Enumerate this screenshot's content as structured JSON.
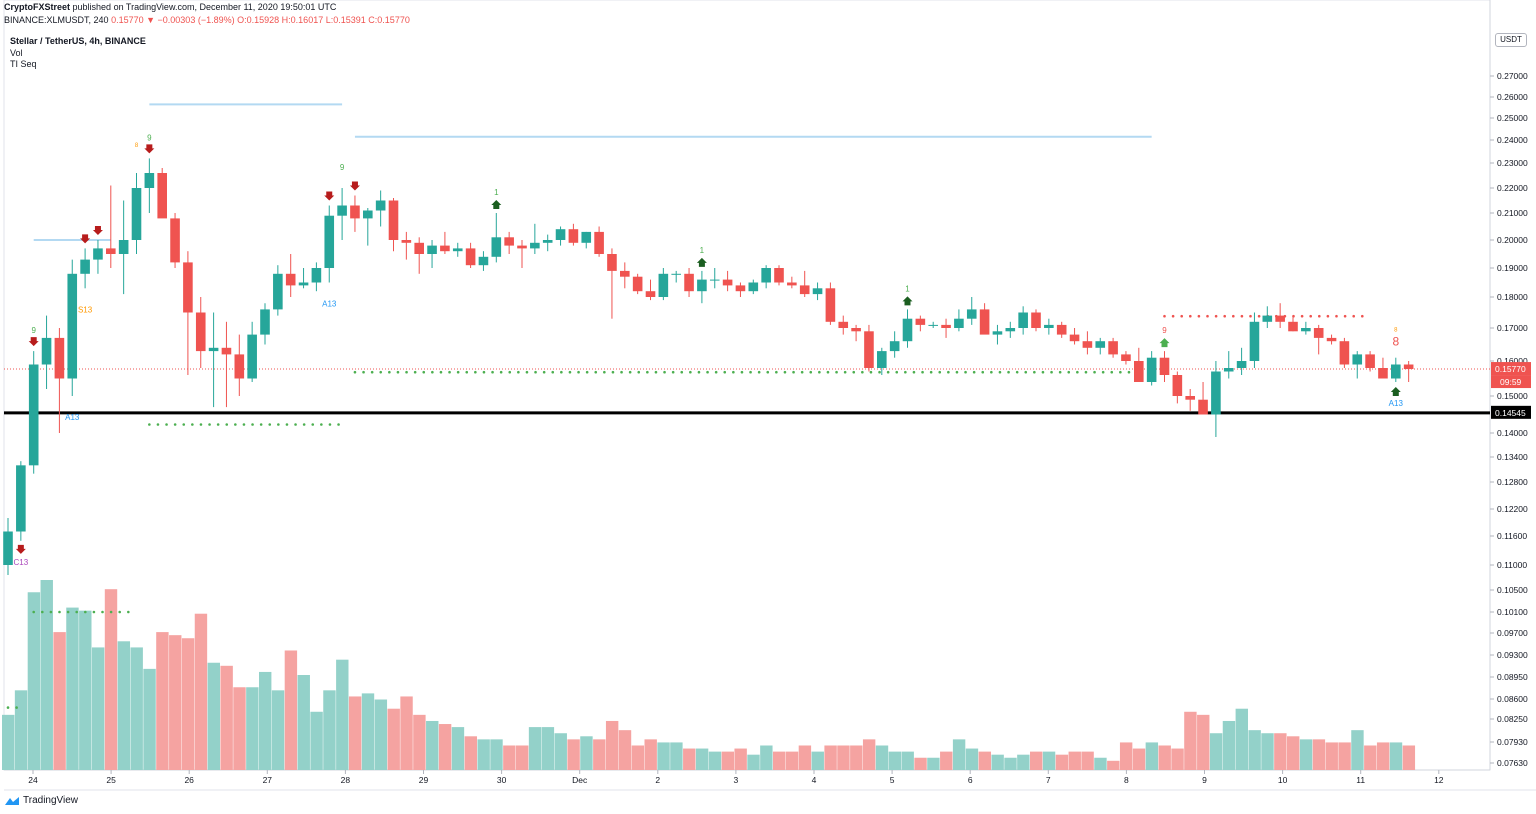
{
  "header": {
    "publisher": "CryptoFXStreet",
    "published_text": "published on TradingView.com, December 11, 2020 19:50:01 UTC",
    "symbol_line": "BINANCE:XLMUSDT, 240",
    "last": "0.15770",
    "change": "▼ −0.00303 (−1.89%)",
    "o": "O:0.15928",
    "h": "H:0.16017",
    "l": "L:0.15391",
    "c": "C:0.15770"
  },
  "legend": {
    "title": "Stellar / TetherUS, 4h, BINANCE",
    "vol": "Vol",
    "indicator": "TI Seq"
  },
  "unit_label": "USDT",
  "footer": {
    "brand": "TradingView"
  },
  "colors": {
    "up": "#26a69a",
    "down": "#ef5350",
    "up_vol": "#93d1c9",
    "down_vol": "#f5a3a1",
    "level": "#000000",
    "resistance": "#b3d9f2",
    "dots_green": "#4caf50",
    "dots_red": "#ef5350",
    "tdseq_green": "#4caf50",
    "tdseq_red": "#ef5350",
    "tdseq_orange": "#ff9800",
    "tdseq_blue": "#2196f3",
    "tdseq_purple": "#ab47bc",
    "arrow_red": "#b71c1c",
    "arrow_green": "#1b5e20"
  },
  "chart_data": {
    "type": "candlestick",
    "ylim": [
      0.0736,
      0.2848
    ],
    "y_ticks": [
      "0.27000",
      "0.26000",
      "0.25000",
      "0.24000",
      "0.23000",
      "0.22000",
      "0.21000",
      "0.20000",
      "0.19000",
      "0.18000",
      "0.17000",
      "0.16000",
      "0.15000",
      "0.14000",
      "0.13400",
      "0.12800",
      "0.12200",
      "0.11600",
      "0.11000",
      "0.10500",
      "0.10100",
      "0.09700",
      "0.09300",
      "0.08950",
      "0.08600",
      "0.08250",
      "0.07930",
      "0.07630"
    ],
    "x_ticks": [
      "24",
      "25",
      "26",
      "27",
      "28",
      "29",
      "30",
      "Dec",
      "2",
      "3",
      "4",
      "5",
      "6",
      "7",
      "8",
      "9",
      "10",
      "11",
      "12"
    ],
    "last_price_label": "0.15770",
    "countdown_label": "09:59",
    "support_level": 0.14545,
    "support_label": "0.14545",
    "candles": [
      {
        "o": 0.11,
        "h": 0.12,
        "l": 0.108,
        "c": 0.117
      },
      {
        "o": 0.117,
        "h": 0.133,
        "l": 0.115,
        "c": 0.132
      },
      {
        "o": 0.132,
        "h": 0.163,
        "l": 0.13,
        "c": 0.159
      },
      {
        "o": 0.159,
        "h": 0.174,
        "l": 0.152,
        "c": 0.167
      },
      {
        "o": 0.167,
        "h": 0.17,
        "l": 0.14,
        "c": 0.155
      },
      {
        "o": 0.155,
        "h": 0.193,
        "l": 0.15,
        "c": 0.188
      },
      {
        "o": 0.188,
        "h": 0.197,
        "l": 0.183,
        "c": 0.193
      },
      {
        "o": 0.193,
        "h": 0.2,
        "l": 0.188,
        "c": 0.197
      },
      {
        "o": 0.197,
        "h": 0.221,
        "l": 0.19,
        "c": 0.195
      },
      {
        "o": 0.195,
        "h": 0.215,
        "l": 0.181,
        "c": 0.2
      },
      {
        "o": 0.2,
        "h": 0.226,
        "l": 0.195,
        "c": 0.22
      },
      {
        "o": 0.22,
        "h": 0.232,
        "l": 0.21,
        "c": 0.226
      },
      {
        "o": 0.226,
        "h": 0.228,
        "l": 0.209,
        "c": 0.208
      },
      {
        "o": 0.208,
        "h": 0.21,
        "l": 0.19,
        "c": 0.192
      },
      {
        "o": 0.192,
        "h": 0.196,
        "l": 0.156,
        "c": 0.175
      },
      {
        "o": 0.175,
        "h": 0.18,
        "l": 0.158,
        "c": 0.163
      },
      {
        "o": 0.163,
        "h": 0.175,
        "l": 0.147,
        "c": 0.164
      },
      {
        "o": 0.164,
        "h": 0.172,
        "l": 0.147,
        "c": 0.162
      },
      {
        "o": 0.162,
        "h": 0.168,
        "l": 0.15,
        "c": 0.155
      },
      {
        "o": 0.155,
        "h": 0.172,
        "l": 0.154,
        "c": 0.168
      },
      {
        "o": 0.168,
        "h": 0.178,
        "l": 0.165,
        "c": 0.176
      },
      {
        "o": 0.176,
        "h": 0.191,
        "l": 0.174,
        "c": 0.188
      },
      {
        "o": 0.188,
        "h": 0.195,
        "l": 0.18,
        "c": 0.184
      },
      {
        "o": 0.184,
        "h": 0.19,
        "l": 0.183,
        "c": 0.185
      },
      {
        "o": 0.185,
        "h": 0.192,
        "l": 0.182,
        "c": 0.19
      },
      {
        "o": 0.19,
        "h": 0.213,
        "l": 0.185,
        "c": 0.209
      },
      {
        "o": 0.209,
        "h": 0.22,
        "l": 0.2,
        "c": 0.213
      },
      {
        "o": 0.213,
        "h": 0.217,
        "l": 0.203,
        "c": 0.208
      },
      {
        "o": 0.208,
        "h": 0.212,
        "l": 0.198,
        "c": 0.211
      },
      {
        "o": 0.211,
        "h": 0.219,
        "l": 0.205,
        "c": 0.215
      },
      {
        "o": 0.215,
        "h": 0.216,
        "l": 0.196,
        "c": 0.2
      },
      {
        "o": 0.2,
        "h": 0.203,
        "l": 0.193,
        "c": 0.199
      },
      {
        "o": 0.199,
        "h": 0.201,
        "l": 0.188,
        "c": 0.195
      },
      {
        "o": 0.195,
        "h": 0.2,
        "l": 0.19,
        "c": 0.198
      },
      {
        "o": 0.198,
        "h": 0.203,
        "l": 0.195,
        "c": 0.196
      },
      {
        "o": 0.196,
        "h": 0.199,
        "l": 0.194,
        "c": 0.197
      },
      {
        "o": 0.197,
        "h": 0.199,
        "l": 0.19,
        "c": 0.191
      },
      {
        "o": 0.191,
        "h": 0.196,
        "l": 0.189,
        "c": 0.194
      },
      {
        "o": 0.194,
        "h": 0.21,
        "l": 0.192,
        "c": 0.201
      },
      {
        "o": 0.201,
        "h": 0.203,
        "l": 0.195,
        "c": 0.198
      },
      {
        "o": 0.198,
        "h": 0.2,
        "l": 0.19,
        "c": 0.197
      },
      {
        "o": 0.197,
        "h": 0.206,
        "l": 0.195,
        "c": 0.199
      },
      {
        "o": 0.199,
        "h": 0.202,
        "l": 0.196,
        "c": 0.2
      },
      {
        "o": 0.2,
        "h": 0.205,
        "l": 0.198,
        "c": 0.204
      },
      {
        "o": 0.204,
        "h": 0.206,
        "l": 0.198,
        "c": 0.199
      },
      {
        "o": 0.199,
        "h": 0.203,
        "l": 0.197,
        "c": 0.203
      },
      {
        "o": 0.203,
        "h": 0.205,
        "l": 0.194,
        "c": 0.195
      },
      {
        "o": 0.195,
        "h": 0.197,
        "l": 0.173,
        "c": 0.189
      },
      {
        "o": 0.189,
        "h": 0.192,
        "l": 0.183,
        "c": 0.187
      },
      {
        "o": 0.187,
        "h": 0.188,
        "l": 0.181,
        "c": 0.182
      },
      {
        "o": 0.182,
        "h": 0.186,
        "l": 0.179,
        "c": 0.18
      },
      {
        "o": 0.18,
        "h": 0.19,
        "l": 0.179,
        "c": 0.188
      },
      {
        "o": 0.188,
        "h": 0.189,
        "l": 0.185,
        "c": 0.188
      },
      {
        "o": 0.188,
        "h": 0.19,
        "l": 0.18,
        "c": 0.182
      },
      {
        "o": 0.182,
        "h": 0.189,
        "l": 0.178,
        "c": 0.186
      },
      {
        "o": 0.186,
        "h": 0.19,
        "l": 0.183,
        "c": 0.186
      },
      {
        "o": 0.186,
        "h": 0.189,
        "l": 0.182,
        "c": 0.184
      },
      {
        "o": 0.184,
        "h": 0.185,
        "l": 0.18,
        "c": 0.182
      },
      {
        "o": 0.182,
        "h": 0.186,
        "l": 0.181,
        "c": 0.185
      },
      {
        "o": 0.185,
        "h": 0.191,
        "l": 0.183,
        "c": 0.19
      },
      {
        "o": 0.19,
        "h": 0.191,
        "l": 0.184,
        "c": 0.185
      },
      {
        "o": 0.185,
        "h": 0.187,
        "l": 0.183,
        "c": 0.184
      },
      {
        "o": 0.184,
        "h": 0.189,
        "l": 0.18,
        "c": 0.181
      },
      {
        "o": 0.181,
        "h": 0.185,
        "l": 0.179,
        "c": 0.183
      },
      {
        "o": 0.183,
        "h": 0.185,
        "l": 0.171,
        "c": 0.172
      },
      {
        "o": 0.172,
        "h": 0.174,
        "l": 0.168,
        "c": 0.17
      },
      {
        "o": 0.17,
        "h": 0.171,
        "l": 0.166,
        "c": 0.169
      },
      {
        "o": 0.169,
        "h": 0.171,
        "l": 0.157,
        "c": 0.158
      },
      {
        "o": 0.158,
        "h": 0.164,
        "l": 0.156,
        "c": 0.163
      },
      {
        "o": 0.163,
        "h": 0.169,
        "l": 0.161,
        "c": 0.166
      },
      {
        "o": 0.166,
        "h": 0.176,
        "l": 0.164,
        "c": 0.173
      },
      {
        "o": 0.173,
        "h": 0.174,
        "l": 0.169,
        "c": 0.171
      },
      {
        "o": 0.171,
        "h": 0.172,
        "l": 0.17,
        "c": 0.171
      },
      {
        "o": 0.171,
        "h": 0.173,
        "l": 0.167,
        "c": 0.17
      },
      {
        "o": 0.17,
        "h": 0.176,
        "l": 0.169,
        "c": 0.173
      },
      {
        "o": 0.173,
        "h": 0.18,
        "l": 0.171,
        "c": 0.176
      },
      {
        "o": 0.176,
        "h": 0.178,
        "l": 0.17,
        "c": 0.168
      },
      {
        "o": 0.168,
        "h": 0.171,
        "l": 0.165,
        "c": 0.169
      },
      {
        "o": 0.169,
        "h": 0.172,
        "l": 0.167,
        "c": 0.17
      },
      {
        "o": 0.17,
        "h": 0.177,
        "l": 0.168,
        "c": 0.175
      },
      {
        "o": 0.175,
        "h": 0.176,
        "l": 0.169,
        "c": 0.17
      },
      {
        "o": 0.17,
        "h": 0.173,
        "l": 0.168,
        "c": 0.171
      },
      {
        "o": 0.171,
        "h": 0.172,
        "l": 0.167,
        "c": 0.168
      },
      {
        "o": 0.168,
        "h": 0.17,
        "l": 0.165,
        "c": 0.166
      },
      {
        "o": 0.166,
        "h": 0.169,
        "l": 0.162,
        "c": 0.164
      },
      {
        "o": 0.164,
        "h": 0.167,
        "l": 0.162,
        "c": 0.166
      },
      {
        "o": 0.166,
        "h": 0.167,
        "l": 0.161,
        "c": 0.162
      },
      {
        "o": 0.162,
        "h": 0.163,
        "l": 0.159,
        "c": 0.16
      },
      {
        "o": 0.16,
        "h": 0.164,
        "l": 0.155,
        "c": 0.154
      },
      {
        "o": 0.154,
        "h": 0.163,
        "l": 0.153,
        "c": 0.161
      },
      {
        "o": 0.161,
        "h": 0.163,
        "l": 0.154,
        "c": 0.156
      },
      {
        "o": 0.156,
        "h": 0.157,
        "l": 0.148,
        "c": 0.15
      },
      {
        "o": 0.15,
        "h": 0.152,
        "l": 0.146,
        "c": 0.149
      },
      {
        "o": 0.149,
        "h": 0.154,
        "l": 0.145,
        "c": 0.145
      },
      {
        "o": 0.145,
        "h": 0.16,
        "l": 0.139,
        "c": 0.157
      },
      {
        "o": 0.157,
        "h": 0.163,
        "l": 0.155,
        "c": 0.158
      },
      {
        "o": 0.158,
        "h": 0.164,
        "l": 0.156,
        "c": 0.16
      },
      {
        "o": 0.16,
        "h": 0.175,
        "l": 0.158,
        "c": 0.172
      },
      {
        "o": 0.172,
        "h": 0.177,
        "l": 0.17,
        "c": 0.174
      },
      {
        "o": 0.174,
        "h": 0.178,
        "l": 0.17,
        "c": 0.172
      },
      {
        "o": 0.172,
        "h": 0.174,
        "l": 0.169,
        "c": 0.169
      },
      {
        "o": 0.169,
        "h": 0.172,
        "l": 0.168,
        "c": 0.17
      },
      {
        "o": 0.17,
        "h": 0.171,
        "l": 0.162,
        "c": 0.167
      },
      {
        "o": 0.167,
        "h": 0.168,
        "l": 0.165,
        "c": 0.166
      },
      {
        "o": 0.166,
        "h": 0.167,
        "l": 0.158,
        "c": 0.159
      },
      {
        "o": 0.159,
        "h": 0.163,
        "l": 0.155,
        "c": 0.162
      },
      {
        "o": 0.162,
        "h": 0.163,
        "l": 0.157,
        "c": 0.158
      },
      {
        "o": 0.158,
        "h": 0.161,
        "l": 0.155,
        "c": 0.155
      },
      {
        "o": 0.155,
        "h": 0.161,
        "l": 0.154,
        "c": 0.159
      },
      {
        "o": 0.159,
        "h": 0.16,
        "l": 0.154,
        "c": 0.1577
      }
    ],
    "volume": [
      0.18,
      0.26,
      0.58,
      0.62,
      0.45,
      0.53,
      0.52,
      0.4,
      0.59,
      0.42,
      0.4,
      0.33,
      0.45,
      0.44,
      0.43,
      0.51,
      0.35,
      0.34,
      0.27,
      0.27,
      0.32,
      0.26,
      0.39,
      0.31,
      0.19,
      0.26,
      0.36,
      0.24,
      0.25,
      0.23,
      0.2,
      0.24,
      0.18,
      0.16,
      0.15,
      0.14,
      0.11,
      0.1,
      0.1,
      0.08,
      0.08,
      0.14,
      0.14,
      0.12,
      0.1,
      0.11,
      0.1,
      0.16,
      0.13,
      0.08,
      0.1,
      0.09,
      0.09,
      0.07,
      0.07,
      0.06,
      0.06,
      0.07,
      0.05,
      0.08,
      0.06,
      0.06,
      0.08,
      0.06,
      0.08,
      0.08,
      0.08,
      0.1,
      0.08,
      0.06,
      0.06,
      0.04,
      0.04,
      0.06,
      0.1,
      0.07,
      0.06,
      0.05,
      0.04,
      0.05,
      0.06,
      0.06,
      0.05,
      0.06,
      0.06,
      0.04,
      0.03,
      0.09,
      0.07,
      0.09,
      0.08,
      0.07,
      0.19,
      0.18,
      0.12,
      0.16,
      0.2,
      0.13,
      0.12,
      0.12,
      0.11,
      0.1,
      0.1,
      0.09,
      0.09,
      0.13,
      0.08,
      0.09,
      0.09,
      0.08
    ],
    "td_labels": [
      {
        "i": 2,
        "text": "9",
        "color": "green",
        "where": "above_high"
      },
      {
        "i": 11,
        "text": "9",
        "color": "green",
        "where": "above_high"
      },
      {
        "i": 10,
        "text": "8",
        "color": "orange",
        "where": "above_high_small"
      },
      {
        "i": 26,
        "text": "9",
        "color": "green",
        "where": "above_high"
      },
      {
        "i": 38,
        "text": "1",
        "color": "green",
        "where": "above_high"
      },
      {
        "i": 54,
        "text": "1",
        "color": "green",
        "where": "above_high"
      },
      {
        "i": 70,
        "text": "1",
        "color": "green",
        "where": "above_high"
      },
      {
        "i": 90,
        "text": "9",
        "color": "red",
        "where": "above_high"
      },
      {
        "i": 108,
        "text": "8",
        "color": "red",
        "where": "above_high_big"
      },
      {
        "i": 108,
        "text": "8",
        "color": "orange",
        "where": "above_high_small"
      },
      {
        "i": 1,
        "text": "C13",
        "color": "purple",
        "where": "below_low"
      },
      {
        "i": 5,
        "text": "A13",
        "color": "blue",
        "where": "below_low"
      },
      {
        "i": 6,
        "text": "S13",
        "color": "orange",
        "where": "below_low"
      },
      {
        "i": 25,
        "text": "A13",
        "color": "blue",
        "where": "below_low"
      },
      {
        "i": 108,
        "text": "A13",
        "color": "blue",
        "where": "below_low"
      }
    ],
    "arrows": [
      {
        "i": 2,
        "dir": "down"
      },
      {
        "i": 6,
        "dir": "down"
      },
      {
        "i": 7,
        "dir": "down"
      },
      {
        "i": 11,
        "dir": "down"
      },
      {
        "i": 25,
        "dir": "down"
      },
      {
        "i": 27,
        "dir": "down"
      },
      {
        "i": 1,
        "dir": "down_below"
      },
      {
        "i": 38,
        "dir": "up"
      },
      {
        "i": 54,
        "dir": "up"
      },
      {
        "i": 70,
        "dir": "up"
      },
      {
        "i": 90,
        "dir": "up_green"
      },
      {
        "i": 108,
        "dir": "up_below"
      }
    ],
    "resistance_lines": [
      {
        "i0": 11,
        "i1": 26,
        "y": 0.2565
      },
      {
        "i0": 27,
        "i1": 89,
        "y": 0.2415
      },
      {
        "i0": 2,
        "i1": 8,
        "y": 0.2
      }
    ],
    "dotted_lines": [
      {
        "i0": 11,
        "i1": 26,
        "y": 0.1423,
        "color": "green"
      },
      {
        "i0": 27,
        "i1": 88,
        "y": 0.1568,
        "color": "green"
      },
      {
        "i0": 90,
        "i1": 106,
        "y": 0.1738,
        "color": "red"
      },
      {
        "i0": 2,
        "i1": 10,
        "y": 0.101,
        "color": "green"
      },
      {
        "i0": 0,
        "i1": 1,
        "y": 0.0845,
        "color": "green"
      }
    ]
  }
}
